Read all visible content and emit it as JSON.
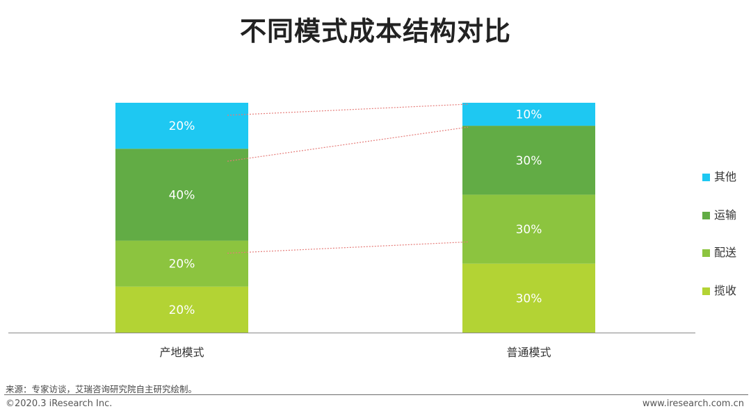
{
  "chart_data": {
    "type": "bar",
    "stacked": true,
    "title": "不同模式成本结构对比",
    "categories": [
      "产地模式",
      "普通模式"
    ],
    "ylim": [
      0,
      100
    ],
    "series": [
      {
        "name": "揽收",
        "values": [
          20,
          30
        ],
        "labels": [
          "20%",
          "30%"
        ],
        "color": "#b3d334"
      },
      {
        "name": "配送",
        "values": [
          20,
          30
        ],
        "labels": [
          "20%",
          "30%"
        ],
        "color": "#8cc43f"
      },
      {
        "name": "运输",
        "values": [
          40,
          30
        ],
        "labels": [
          "40%",
          "30%"
        ],
        "color": "#62ac45"
      },
      {
        "name": "其他",
        "values": [
          20,
          10
        ],
        "labels": [
          "20%",
          "10%"
        ],
        "color": "#1ec8f2"
      }
    ],
    "legend": [
      "其他",
      "运输",
      "配送",
      "揽收"
    ],
    "legend_position": "right",
    "grid": false,
    "connector_color": "#e57b78"
  },
  "footer": {
    "source": "来源：专家访谈，艾瑞咨询研究院自主研究绘制。",
    "copyright": "©2020.3 iResearch Inc.",
    "website": "www.iresearch.com.cn"
  }
}
